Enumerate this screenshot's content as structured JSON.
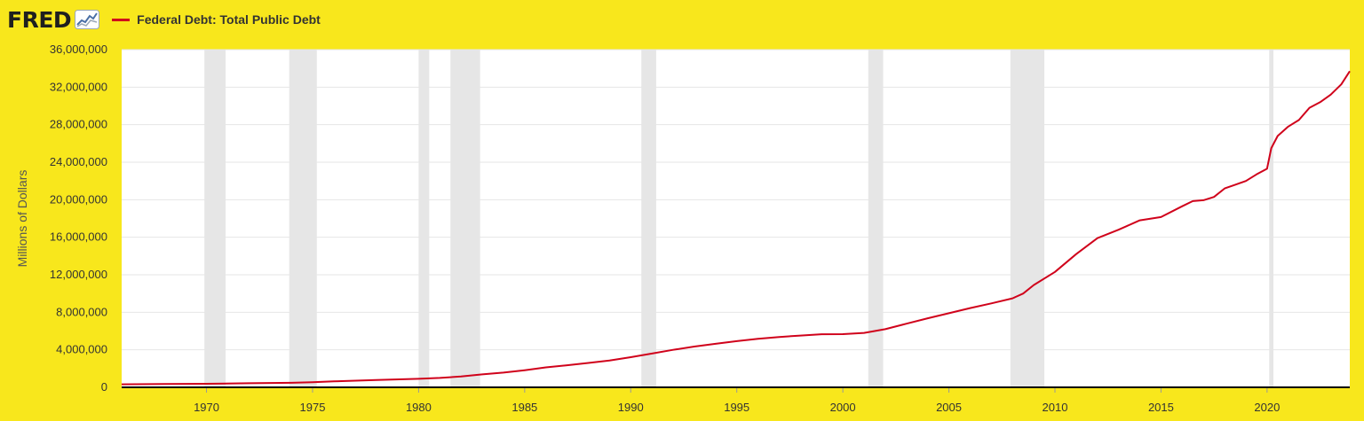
{
  "header": {
    "logo_text": "FRED",
    "logo_icon": "line-chart-icon",
    "logo_registered": "®"
  },
  "colors": {
    "background": "#f8e71c",
    "plot_background": "#ffffff",
    "series_line": "#d0021b",
    "recession_band": "#e6e6e6",
    "gridline": "#e6e6e6",
    "axis_line": "#000000",
    "text": "#333333"
  },
  "chart_data": {
    "type": "line",
    "title": "",
    "xlabel": "",
    "ylabel": "Millions of Dollars",
    "xlim": [
      1966.0,
      2023.9
    ],
    "ylim": [
      0,
      36000000
    ],
    "grid": true,
    "legend": "top-left",
    "yticks": [
      0,
      4000000,
      8000000,
      12000000,
      16000000,
      20000000,
      24000000,
      28000000,
      32000000,
      36000000
    ],
    "ytick_labels": [
      "0",
      "4,000,000",
      "8,000,000",
      "12,000,000",
      "16,000,000",
      "20,000,000",
      "24,000,000",
      "28,000,000",
      "32,000,000",
      "36,000,000"
    ],
    "xticks": [
      1970,
      1975,
      1980,
      1985,
      1990,
      1995,
      2000,
      2005,
      2010,
      2015,
      2020
    ],
    "xtick_labels": [
      "1970",
      "1975",
      "1980",
      "1985",
      "1990",
      "1995",
      "2000",
      "2005",
      "2010",
      "2015",
      "2020"
    ],
    "recessions": [
      [
        1969.9,
        1970.9
      ],
      [
        1973.9,
        1975.2
      ],
      [
        1980.0,
        1980.5
      ],
      [
        1981.5,
        1982.9
      ],
      [
        1990.5,
        1991.2
      ],
      [
        2001.2,
        2001.9
      ],
      [
        2007.9,
        2009.5
      ],
      [
        2020.1,
        2020.3
      ]
    ],
    "series": [
      {
        "name": "Federal Debt: Total Public Debt",
        "x": [
          1966.0,
          1968.0,
          1970.0,
          1972.0,
          1974.0,
          1975.0,
          1976.0,
          1978.0,
          1980.0,
          1981.0,
          1982.0,
          1983.0,
          1984.0,
          1985.0,
          1986.0,
          1987.0,
          1988.0,
          1989.0,
          1990.0,
          1991.0,
          1992.0,
          1993.0,
          1994.0,
          1995.0,
          1996.0,
          1997.0,
          1998.0,
          1999.0,
          2000.0,
          2001.0,
          2002.0,
          2003.0,
          2004.0,
          2005.0,
          2006.0,
          2007.0,
          2008.0,
          2008.5,
          2009.0,
          2010.0,
          2011.0,
          2012.0,
          2013.0,
          2014.0,
          2015.0,
          2016.0,
          2016.5,
          2017.0,
          2017.5,
          2018.0,
          2018.5,
          2019.0,
          2019.5,
          2020.0,
          2020.2,
          2020.5,
          2021.0,
          2021.5,
          2022.0,
          2022.5,
          2023.0,
          2023.5,
          2023.9
        ],
        "values": [
          320000,
          350000,
          380000,
          430000,
          480000,
          540000,
          630000,
          780000,
          910000,
          1000000,
          1150000,
          1380000,
          1570000,
          1820000,
          2130000,
          2350000,
          2600000,
          2860000,
          3210000,
          3600000,
          4000000,
          4350000,
          4640000,
          4920000,
          5180000,
          5370000,
          5520000,
          5660000,
          5670000,
          5800000,
          6200000,
          6780000,
          7360000,
          7900000,
          8450000,
          8950000,
          9490000,
          10000000,
          10900000,
          12300000,
          14200000,
          15900000,
          16800000,
          17800000,
          18150000,
          19300000,
          19850000,
          19950000,
          20300000,
          21200000,
          21600000,
          22000000,
          22700000,
          23300000,
          25500000,
          26800000,
          27800000,
          28500000,
          29800000,
          30400000,
          31200000,
          32300000,
          33700000
        ]
      }
    ]
  }
}
